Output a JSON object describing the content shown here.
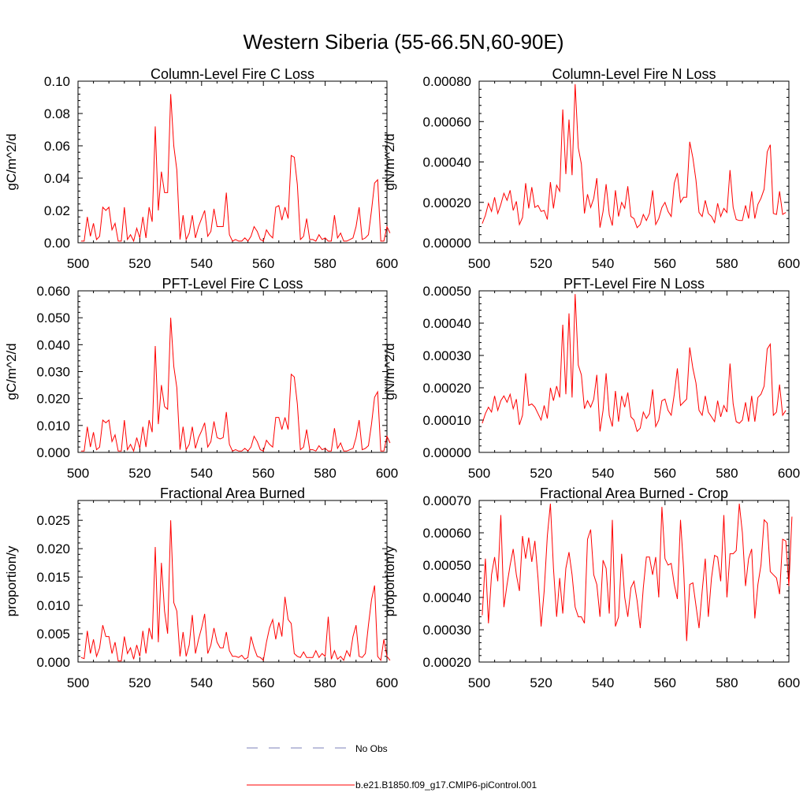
{
  "figure_title": "Western Siberia (55-66.5N,60-90E)",
  "legend": {
    "entries": [
      {
        "label": "No Obs",
        "color": "#7b82b8",
        "dash": true
      },
      {
        "label": "b.e21.B1850.f09_g17.CMIP6-piControl.001",
        "color": "#ff0000",
        "dash": false
      }
    ]
  },
  "chart_data": [
    {
      "type": "line",
      "title": "Column-Level Fire C Loss",
      "ylabel": "gC/m^2/d",
      "xlim": [
        500,
        600
      ],
      "ylim": [
        0,
        0.1
      ],
      "xticks": [
        500,
        520,
        540,
        560,
        580,
        600
      ],
      "yticks": [
        0,
        0.02,
        0.04,
        0.06,
        0.08,
        0.1
      ],
      "ytick_labels": [
        "0.00",
        "0.02",
        "0.04",
        "0.06",
        "0.08",
        "0.10"
      ],
      "x_start": 501,
      "series": [
        {
          "color": "#ff0000",
          "values": [
            0.001,
            0.001,
            0.016,
            0.004,
            0.012,
            0.002,
            0.004,
            0.022,
            0.02,
            0.022,
            0.008,
            0.012,
            0.001,
            0.001,
            0.022,
            0.002,
            0.005,
            0.001,
            0.009,
            0.003,
            0.016,
            0.003,
            0.022,
            0.013,
            0.072,
            0.02,
            0.044,
            0.031,
            0.031,
            0.092,
            0.06,
            0.045,
            0.002,
            0.017,
            0.002,
            0.006,
            0.017,
            0.003,
            0.01,
            0.015,
            0.02,
            0.004,
            0.007,
            0.021,
            0.01,
            0.01,
            0.01,
            0.031,
            0.005,
            0.001,
            0.002,
            0.001,
            0.001,
            0.003,
            0.001,
            0.004,
            0.01,
            0.007,
            0.002,
            0.001,
            0.008,
            0.005,
            0.003,
            0.022,
            0.023,
            0.014,
            0.022,
            0.015,
            0.054,
            0.053,
            0.036,
            0.002,
            0.004,
            0.015,
            0.002,
            0.002,
            0.001,
            0.005,
            0.002,
            0.003,
            0.001,
            0.001,
            0.017,
            0.003,
            0.006,
            0.001,
            0.001,
            0.002,
            0.003,
            0.01,
            0.022,
            0.002,
            0.003,
            0.005,
            0.02,
            0.037,
            0.039,
            0.001,
            0.001,
            0.01,
            0.006
          ]
        }
      ]
    },
    {
      "type": "line",
      "title": "Column-Level Fire N Loss",
      "ylabel": "gN/m^2/d",
      "xlim": [
        500,
        600
      ],
      "ylim": [
        0,
        0.0008
      ],
      "xticks": [
        500,
        520,
        540,
        560,
        580,
        600
      ],
      "yticks": [
        0,
        0.0002,
        0.0004,
        0.0006,
        0.0008
      ],
      "ytick_labels": [
        "0.00000",
        "0.00020",
        "0.00040",
        "0.00060",
        "0.00080"
      ],
      "x_start": 501,
      "series": [
        {
          "color": "#ff0000",
          "values": [
            9.5e-05,
            0.000135,
            0.000195,
            0.000155,
            0.000225,
            0.000145,
            0.00019,
            0.000245,
            0.00021,
            0.00026,
            0.00016,
            0.000205,
            9e-05,
            0.000125,
            0.000295,
            0.00017,
            0.000275,
            0.000175,
            0.000185,
            0.000155,
            0.00016,
            0.000115,
            0.0003,
            0.00017,
            0.000285,
            0.000255,
            0.00066,
            0.00034,
            0.00061,
            0.000335,
            0.000785,
            0.00047,
            0.00039,
            0.000145,
            0.00024,
            0.000175,
            0.00022,
            0.00032,
            7.5e-05,
            0.000155,
            0.00029,
            0.00014,
            8.5e-05,
            0.00026,
            0.00013,
            0.0002,
            0.00017,
            0.00028,
            0.00013,
            0.00012,
            7.5e-05,
            9e-05,
            0.00014,
            0.00011,
            0.000145,
            0.00026,
            9e-05,
            0.00012,
            0.000175,
            0.0002,
            0.000155,
            0.00013,
            0.000295,
            0.000345,
            0.0002,
            0.000225,
            0.000225,
            0.0005,
            0.00042,
            0.00031,
            0.00015,
            0.00013,
            0.00021,
            0.000145,
            0.00013,
            0.0001,
            0.000195,
            0.00013,
            0.00017,
            0.00015,
            0.00036,
            0.000175,
            0.000115,
            0.00011,
            0.00011,
            0.000185,
            0.00012,
            0.000255,
            0.00012,
            0.00019,
            0.00022,
            0.000265,
            0.00045,
            0.000485,
            0.000145,
            0.00014,
            0.000255,
            0.00014,
            0.00015
          ]
        }
      ]
    },
    {
      "type": "line",
      "title": "PFT-Level Fire C Loss",
      "ylabel": "gC/m^2/d",
      "xlim": [
        500,
        600
      ],
      "ylim": [
        0,
        0.06
      ],
      "xticks": [
        500,
        520,
        540,
        560,
        580,
        600
      ],
      "yticks": [
        0,
        0.01,
        0.02,
        0.03,
        0.04,
        0.05,
        0.06
      ],
      "ytick_labels": [
        "0.000",
        "0.010",
        "0.020",
        "0.030",
        "0.040",
        "0.050",
        "0.060"
      ],
      "x_start": 501,
      "series": [
        {
          "color": "#ff0000",
          "values": [
            0.0005,
            0.0005,
            0.0095,
            0.002,
            0.0075,
            0.001,
            0.002,
            0.012,
            0.011,
            0.012,
            0.004,
            0.0065,
            0.0005,
            0.0005,
            0.012,
            0.001,
            0.003,
            0.0005,
            0.0055,
            0.0015,
            0.0095,
            0.002,
            0.012,
            0.0075,
            0.0395,
            0.0105,
            0.025,
            0.017,
            0.016,
            0.05,
            0.032,
            0.024,
            0.001,
            0.0095,
            0.001,
            0.003,
            0.0095,
            0.0015,
            0.0055,
            0.008,
            0.011,
            0.002,
            0.004,
            0.0115,
            0.0055,
            0.005,
            0.0055,
            0.015,
            0.003,
            0.0005,
            0.001,
            0.0005,
            0.0005,
            0.0015,
            0.0005,
            0.002,
            0.006,
            0.004,
            0.001,
            0.0005,
            0.0045,
            0.003,
            0.002,
            0.013,
            0.013,
            0.0085,
            0.013,
            0.0085,
            0.029,
            0.028,
            0.018,
            0.001,
            0.002,
            0.0085,
            0.001,
            0.001,
            0.0005,
            0.0025,
            0.001,
            0.0015,
            0.0005,
            0.0005,
            0.009,
            0.0015,
            0.0035,
            0.0005,
            0.0005,
            0.001,
            0.0015,
            0.0055,
            0.012,
            0.001,
            0.0015,
            0.0025,
            0.0105,
            0.0205,
            0.0225,
            0.0005,
            0.0005,
            0.006,
            0.0035
          ]
        }
      ]
    },
    {
      "type": "line",
      "title": "PFT-Level Fire N Loss",
      "ylabel": "gN/m^2/d",
      "xlim": [
        500,
        600
      ],
      "ylim": [
        0,
        0.0005
      ],
      "xticks": [
        500,
        520,
        540,
        560,
        580,
        600
      ],
      "yticks": [
        0,
        0.0001,
        0.0002,
        0.0003,
        0.0004,
        0.0005
      ],
      "ytick_labels": [
        "0.00000",
        "0.00010",
        "0.00020",
        "0.00030",
        "0.00040",
        "0.00050"
      ],
      "x_start": 501,
      "series": [
        {
          "color": "#ff0000",
          "values": [
            9e-05,
            0.00012,
            0.00014,
            0.000125,
            0.000175,
            0.00013,
            0.00016,
            0.000175,
            0.000155,
            0.00018,
            0.000135,
            0.000165,
            8.5e-05,
            0.000115,
            0.000245,
            0.000145,
            0.00015,
            0.00014,
            0.00012,
            0.0001,
            0.000145,
            0.000105,
            0.0002,
            0.00016,
            0.000205,
            0.00017,
            0.000395,
            0.00018,
            0.00043,
            0.00017,
            0.00049,
            0.00027,
            0.00024,
            0.000135,
            0.00016,
            0.00014,
            0.000165,
            0.00024,
            6.5e-05,
            0.00013,
            0.000245,
            0.000115,
            8e-05,
            0.00019,
            9.5e-05,
            0.000175,
            0.00014,
            0.000185,
            0.00011,
            0.0001,
            6.5e-05,
            7.5e-05,
            0.000125,
            0.000105,
            0.00012,
            0.000195,
            8e-05,
            0.0001,
            0.00016,
            0.000165,
            0.00013,
            0.000115,
            0.00018,
            0.00026,
            0.000145,
            0.000155,
            0.000165,
            0.000325,
            0.00026,
            0.000215,
            0.00013,
            0.000115,
            0.000175,
            0.000125,
            0.00011,
            9.5e-05,
            0.00016,
            0.00011,
            0.000145,
            0.000125,
            0.000275,
            0.00015,
            9.5e-05,
            9e-05,
            0.0001,
            0.000155,
            9.5e-05,
            0.000175,
            9.5e-05,
            0.00017,
            0.00018,
            0.000205,
            0.00032,
            0.000335,
            0.000115,
            0.000125,
            0.00021,
            0.000115,
            0.00013
          ]
        }
      ]
    },
    {
      "type": "line",
      "title": "Fractional Area Burned",
      "ylabel": "proportion/y",
      "xlim": [
        500,
        600
      ],
      "ylim": [
        0,
        0.0285
      ],
      "xticks": [
        500,
        520,
        540,
        560,
        580,
        600
      ],
      "yticks": [
        0,
        0.005,
        0.01,
        0.015,
        0.02,
        0.025
      ],
      "ytick_labels": [
        "0.000",
        "0.005",
        "0.010",
        "0.015",
        "0.020",
        "0.025"
      ],
      "x_start": 501,
      "series": [
        {
          "color": "#ff0000",
          "values": [
            0.0008,
            0.0006,
            0.0055,
            0.0015,
            0.004,
            0.001,
            0.0025,
            0.0065,
            0.0045,
            0.0045,
            0.0015,
            0.0035,
            0.0002,
            0.0002,
            0.0045,
            0.0015,
            0.0025,
            0.0005,
            0.003,
            0.001,
            0.0055,
            0.0015,
            0.006,
            0.004,
            0.0203,
            0.0035,
            0.0175,
            0.009,
            0.005,
            0.025,
            0.0105,
            0.009,
            0.001,
            0.0053,
            0.001,
            0.003,
            0.0083,
            0.0015,
            0.004,
            0.006,
            0.0085,
            0.0015,
            0.003,
            0.006,
            0.0035,
            0.0025,
            0.0025,
            0.0053,
            0.002,
            0.001,
            0.001,
            0.0008,
            0.0012,
            0.0005,
            0.0008,
            0.0045,
            0.0025,
            0.001,
            0.0008,
            0.0003,
            0.0035,
            0.006,
            0.0075,
            0.004,
            0.007,
            0.0045,
            0.0115,
            0.0075,
            0.0068,
            0.0015,
            0.001,
            0.0008,
            0.0018,
            0.0008,
            0.0008,
            0.0008,
            0.002,
            0.0008,
            0.0015,
            0.001,
            0.008,
            0.0005,
            0.002,
            0.0005,
            0.001,
            0.0003,
            0.002,
            0.001,
            0.0045,
            0.0065,
            0.001,
            0.0008,
            0.0015,
            0.0065,
            0.011,
            0.0135,
            0.001,
            0.0003,
            0.004,
            0.001,
            0.0003
          ]
        }
      ]
    },
    {
      "type": "line",
      "title": "Fractional Area Burned - Crop",
      "ylabel": "proportion/y",
      "xlim": [
        500,
        600
      ],
      "ylim": [
        0.0002,
        0.0007
      ],
      "xticks": [
        500,
        520,
        540,
        560,
        580,
        600
      ],
      "yticks": [
        0.0002,
        0.0003,
        0.0004,
        0.0005,
        0.0006,
        0.0007
      ],
      "ytick_labels": [
        "0.00020",
        "0.00030",
        "0.00040",
        "0.00050",
        "0.00060",
        "0.00070"
      ],
      "x_start": 501,
      "series": [
        {
          "color": "#ff0000",
          "values": [
            0.000345,
            0.00052,
            0.00032,
            0.00047,
            0.000525,
            0.00045,
            0.000655,
            0.00037,
            0.00044,
            0.0005,
            0.00055,
            0.00047,
            0.00042,
            0.00059,
            0.00052,
            0.000585,
            0.00051,
            0.000575,
            0.00046,
            0.00031,
            0.00042,
            0.00059,
            0.00069,
            0.00049,
            0.00034,
            0.00046,
            0.00035,
            0.00049,
            0.00054,
            0.00047,
            0.00037,
            0.00034,
            0.00034,
            0.00032,
            0.00058,
            0.00061,
            0.00047,
            0.00044,
            0.00034,
            0.000515,
            0.00049,
            0.00035,
            0.00064,
            0.00031,
            0.00034,
            0.000535,
            0.0004,
            0.00034,
            0.00043,
            0.00045,
            0.00039,
            0.000305,
            0.00043,
            0.000525,
            0.000525,
            0.00047,
            0.000525,
            0.0004,
            0.00068,
            0.00052,
            0.0005,
            0.000505,
            0.00044,
            0.000395,
            0.00064,
            0.00049,
            0.000265,
            0.00044,
            0.000445,
            0.000375,
            0.000305,
            0.00042,
            0.00052,
            0.00034,
            0.00046,
            0.00053,
            0.000525,
            0.00045,
            0.000655,
            0.0004,
            0.000535,
            0.000535,
            0.000545,
            0.00069,
            0.0006,
            0.000435,
            0.00052,
            0.00055,
            0.000335,
            0.00044,
            0.0005,
            0.00064,
            0.00063,
            0.00048,
            0.00047,
            0.00046,
            0.00041,
            0.00058,
            0.000575,
            0.000435,
            0.00065
          ]
        }
      ]
    }
  ]
}
